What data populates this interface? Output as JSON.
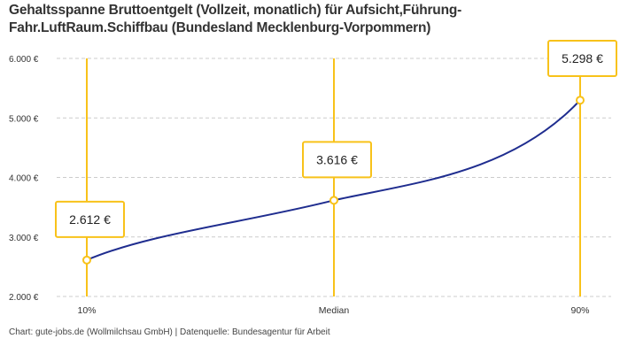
{
  "chart_data": {
    "type": "line",
    "title_lines": [
      "Gehaltsspanne Bruttoentgelt (Vollzeit, monatlich) für Aufsicht,Führung-",
      "Fahr.LuftRaum.Schiffbau (Bundesland Mecklenburg-Vorpommern)"
    ],
    "categories": [
      "10%",
      "Median",
      "90%"
    ],
    "values": [
      2612,
      3616,
      5298
    ],
    "data_labels": [
      "2.612 €",
      "3.616 €",
      "5.298 €"
    ],
    "ylim": [
      2000,
      6000
    ],
    "yticks": [
      2000,
      3000,
      4000,
      5000,
      6000
    ],
    "ytick_labels": [
      "2.000 €",
      "3.000 €",
      "4.000 €",
      "5.000 €",
      "6.000 €"
    ],
    "grid": "horizontal dashed",
    "colors": {
      "line": "#1f2d8f",
      "marker": "#f8c21a",
      "grid": "#cccccc"
    }
  },
  "footer": "Chart: gute-jobs.de (Wollmilchsau GmbH) | Datenquelle: Bundesagentur für Arbeit"
}
